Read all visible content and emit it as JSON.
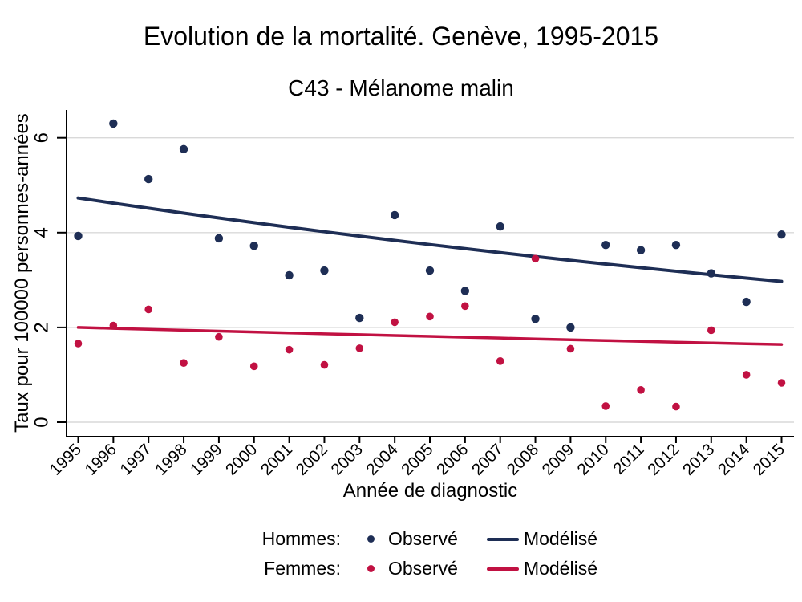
{
  "chart_data": {
    "type": "scatter",
    "title": "Evolution de la mortalité. Genève, 1995-2015",
    "subtitle": "C43 - Mélanome malin",
    "xlabel": "Année de diagnostic",
    "ylabel": "Taux pour 100000 personnes-années",
    "x_ticks": [
      1995,
      1996,
      1997,
      1998,
      1999,
      2000,
      2001,
      2002,
      2003,
      2004,
      2005,
      2006,
      2007,
      2008,
      2009,
      2010,
      2011,
      2012,
      2013,
      2014,
      2015
    ],
    "y_ticks": [
      0,
      2,
      4,
      6
    ],
    "ylim": [
      0,
      6.6
    ],
    "grid": true,
    "legend_position": "bottom",
    "colors": {
      "hommes": "#1e2e55",
      "femmes": "#c11142",
      "grid": "#d9d9d9",
      "axis": "#000000"
    },
    "series": [
      {
        "name": "Hommes observé",
        "group": "hommes",
        "type": "scatter",
        "x": [
          1995,
          1996,
          1997,
          1998,
          1999,
          2000,
          2001,
          2002,
          2003,
          2004,
          2005,
          2006,
          2007,
          2008,
          2009,
          2010,
          2011,
          2012,
          2013,
          2014,
          2015
        ],
        "y": [
          3.93,
          6.3,
          5.13,
          5.76,
          3.88,
          3.72,
          3.1,
          3.2,
          2.2,
          4.37,
          3.2,
          2.77,
          4.13,
          2.18,
          2.0,
          3.74,
          3.63,
          3.74,
          3.14,
          2.54,
          3.96
        ]
      },
      {
        "name": "Hommes modélisé",
        "group": "hommes",
        "type": "line",
        "model_start": 4.73,
        "model_end": 2.97,
        "interpolation": "log-linear"
      },
      {
        "name": "Femmes observé",
        "group": "femmes",
        "type": "scatter",
        "x": [
          1995,
          1996,
          1997,
          1998,
          1999,
          2000,
          2001,
          2002,
          2003,
          2004,
          2005,
          2006,
          2007,
          2008,
          2009,
          2010,
          2011,
          2012,
          2013,
          2014,
          2015
        ],
        "y": [
          1.66,
          2.04,
          2.38,
          1.25,
          1.8,
          1.18,
          1.53,
          1.21,
          1.56,
          2.11,
          2.23,
          2.45,
          1.29,
          3.45,
          1.55,
          0.34,
          0.68,
          0.33,
          1.94,
          1.0,
          0.83
        ]
      },
      {
        "name": "Femmes modélisé",
        "group": "femmes",
        "type": "line",
        "model_start": 2.0,
        "model_end": 1.64,
        "interpolation": "log-linear"
      }
    ],
    "legend": {
      "rows": [
        {
          "label": "Hommes:",
          "observed": "Observé",
          "modeled": "Modélisé",
          "group": "hommes"
        },
        {
          "label": "Femmes:",
          "observed": "Observé",
          "modeled": "Modélisé",
          "group": "femmes"
        }
      ]
    }
  }
}
